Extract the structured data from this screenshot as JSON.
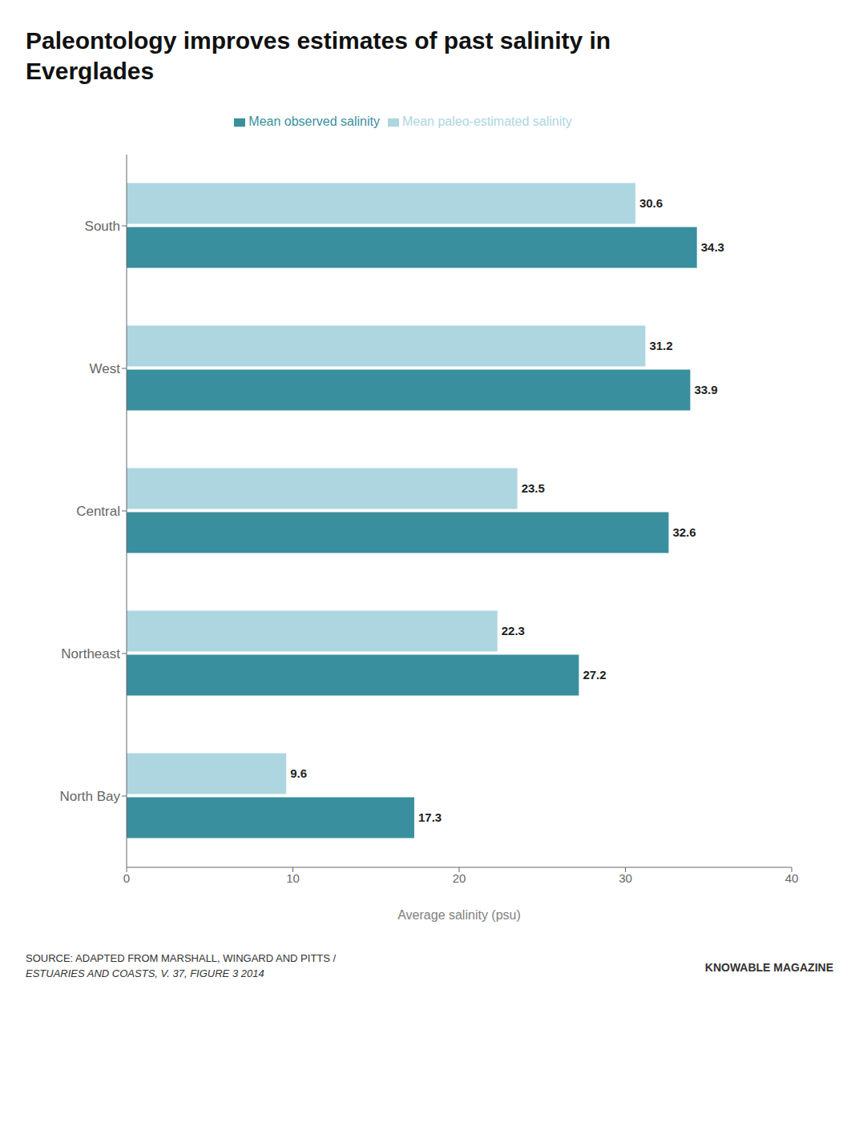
{
  "chart_data": {
    "type": "bar",
    "orientation": "horizontal",
    "title": "Paleontology improves estimates of past salinity in\nEverglades",
    "categories": [
      "South",
      "West",
      "Central",
      "Northeast",
      "North Bay"
    ],
    "series": [
      {
        "name": "Mean paleo-estimated salinity",
        "color": "#aed6e0",
        "values": [
          30.6,
          31.2,
          23.5,
          22.3,
          9.6
        ]
      },
      {
        "name": "Mean observed salinity",
        "color": "#3a8f9e",
        "values": [
          34.3,
          33.9,
          32.6,
          27.2,
          17.3
        ]
      }
    ],
    "xlabel": "Average salinity (psu)",
    "xlim": [
      0,
      40
    ],
    "xticks": [
      0,
      10,
      20,
      30,
      40
    ],
    "data_labels": true,
    "legend": "top",
    "grid": false,
    "annotations": [
      "SOURCE: ADAPTED FROM MARSHALL, WINGARD AND PITTS /",
      "ESTUARIES AND COASTS, V. 37, FIGURE 3 2014",
      "KNOWABLE MAGAZINE"
    ]
  }
}
